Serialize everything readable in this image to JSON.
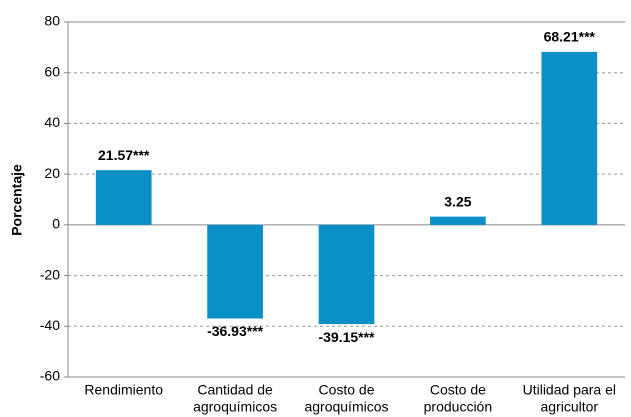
{
  "chart_data": {
    "type": "bar",
    "y_label": "Porcentaje",
    "categories": [
      [
        "Rendimiento"
      ],
      [
        "Cantidad de",
        "agroquímicos"
      ],
      [
        "Costo de",
        "agroquímicos"
      ],
      [
        "Costo de",
        "producción"
      ],
      [
        "Utilidad para el",
        "agricultor"
      ]
    ],
    "values": [
      21.57,
      -36.93,
      -39.15,
      3.25,
      68.21
    ],
    "value_labels": [
      "21.57***",
      "-36.93***",
      "-39.15***",
      "3.25",
      "68.21***"
    ],
    "color": "#0a8fc7",
    "ylim": [
      -60,
      80
    ],
    "yticks": [
      -60,
      -40,
      -20,
      0,
      20,
      40,
      60,
      80
    ],
    "grid": true
  }
}
